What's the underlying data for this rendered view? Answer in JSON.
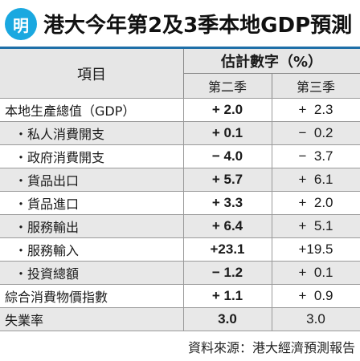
{
  "header": {
    "logo_text": "明",
    "title": "港大今年第2及3季本地GDP預測"
  },
  "table": {
    "col_item": "項目",
    "col_estimate": "估計數字（%）",
    "col_q2": "第二季",
    "col_q3": "第三季",
    "rows": [
      {
        "label": "本地生產總值（GDP）",
        "q2": "+ 2.0",
        "q3": "+  2.3"
      },
      {
        "label": "・私人消費開支",
        "q2": "+ 0.1",
        "q3": "−  0.2"
      },
      {
        "label": "・政府消費開支",
        "q2": "− 4.0",
        "q3": "−  3.7"
      },
      {
        "label": "・貨品出口",
        "q2": "+ 5.7",
        "q3": "+  6.1"
      },
      {
        "label": "・貨品進口",
        "q2": "+ 3.3",
        "q3": "+  2.0"
      },
      {
        "label": "・服務輸出",
        "q2": "+ 6.4",
        "q3": "+  5.1"
      },
      {
        "label": "・服務輸入",
        "q2": "+23.1",
        "q3": "+19.5"
      },
      {
        "label": "・投資總額",
        "q2": "− 1.2",
        "q3": "+  0.1"
      },
      {
        "label": "綜合消費物價指數",
        "q2": "+ 1.1",
        "q3": "+  0.9"
      },
      {
        "label": "失業率",
        "q2": "3.0",
        "q3": "3.0"
      }
    ]
  },
  "source": "資料來源：港大經濟預測報告",
  "colors": {
    "logo": "#1aa8e0",
    "title_rule": "#1e6fa8",
    "header_bg": "#e6e6e6",
    "shade_bg": "#e8e8e8"
  }
}
